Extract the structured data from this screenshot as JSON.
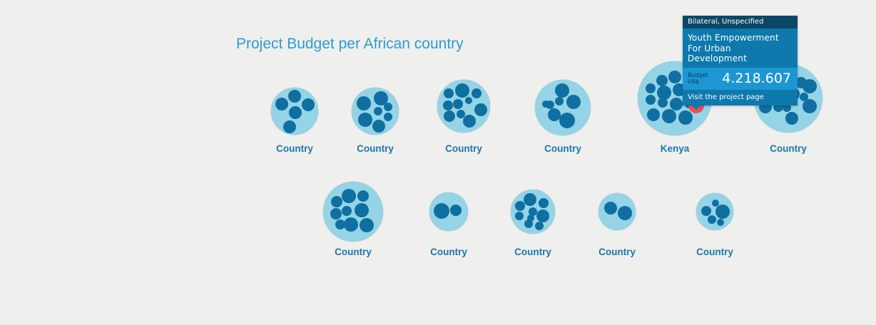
{
  "page": {
    "title": "Project Budget per African country"
  },
  "colors": {
    "background": "#efefed",
    "country_bubble": "#95d3e7",
    "country_bubble_stroke": "#a9cfd9",
    "project_bubble": "#0e6fa0",
    "highlighted_project": "#e8505b",
    "label": "#1b78a8",
    "title": "#2e9bcf"
  },
  "tooltip": {
    "category": "Bilateral, Unspecified",
    "title_line1": "Youth Empowerment",
    "title_line2": "For Urban Development",
    "budget_label_line1": "Budget",
    "budget_label_line2": "US$",
    "budget_value": "4.218.607",
    "link_label": "Visit the project page"
  },
  "chart_data": {
    "type": "packed-bubble",
    "title": "Project Budget per African country",
    "groups": [
      {
        "label": "Country",
        "projects": 6
      },
      {
        "label": "Country",
        "projects": 7
      },
      {
        "label": "Country",
        "projects": 10
      },
      {
        "label": "Country",
        "projects": 7
      },
      {
        "label": "Kenya",
        "projects": 12,
        "highlighted_project": {
          "name": "Youth Empowerment For Urban Development",
          "category": "Bilateral, Unspecified",
          "budget_usd": 4218607
        }
      },
      {
        "label": "Country",
        "projects": 13
      },
      {
        "label": "Country",
        "projects": 10
      },
      {
        "label": "Country",
        "projects": 2
      },
      {
        "label": "Country",
        "projects": 9
      },
      {
        "label": "Country",
        "projects": 2
      },
      {
        "label": "Country",
        "projects": 4
      }
    ]
  }
}
